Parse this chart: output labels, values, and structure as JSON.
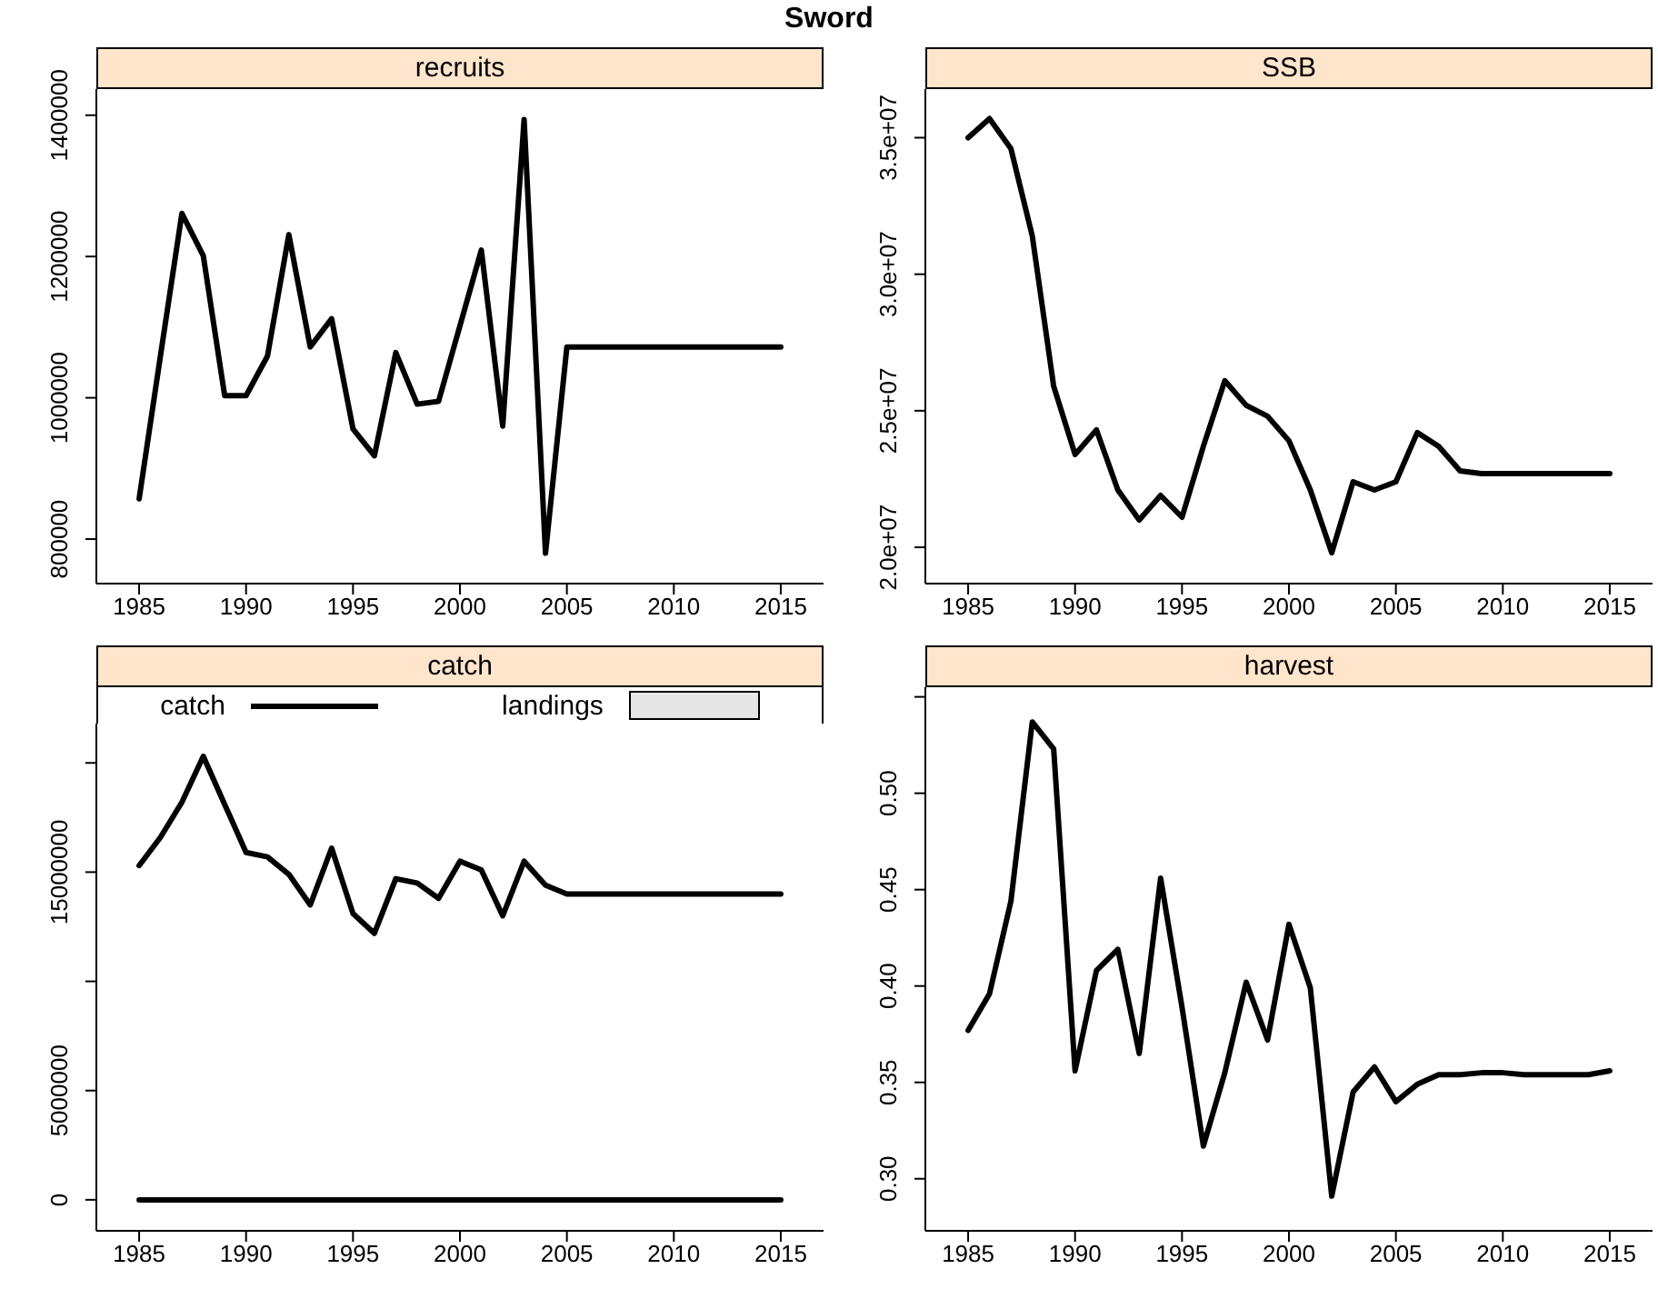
{
  "chart_data": [
    {
      "type": "line",
      "title": "recruits",
      "annotations": [
        "Sword"
      ],
      "x": [
        1985,
        1986,
        1987,
        1988,
        1989,
        1990,
        1991,
        1992,
        1993,
        1994,
        1995,
        1996,
        1997,
        1998,
        1999,
        2000,
        2001,
        2002,
        2003,
        2004,
        2005,
        2006,
        2007,
        2008,
        2009,
        2010,
        2011,
        2012,
        2013,
        2014,
        2015
      ],
      "series": [
        {
          "color": "#000000",
          "values": [
            857000,
            1060000,
            1261000,
            1201000,
            1003000,
            1003000,
            1059000,
            1231000,
            1072000,
            1112000,
            956000,
            918000,
            1064000,
            991000,
            995000,
            1102000,
            1209000,
            960000,
            1394000,
            780000,
            1072000,
            1072000,
            1072000,
            1072000,
            1072000,
            1072000,
            1072000,
            1072000,
            1072000,
            1072000,
            1072000
          ]
        }
      ],
      "xlim": [
        1983,
        2017
      ],
      "xticks": [
        1985,
        1990,
        1995,
        2000,
        2005,
        2010,
        2015
      ],
      "ylim": [
        737000,
        1437000
      ],
      "yticks": [
        800000,
        1000000,
        1200000,
        1400000
      ]
    },
    {
      "type": "line",
      "title": "SSB",
      "x": [
        1985,
        1986,
        1987,
        1988,
        1989,
        1990,
        1991,
        1992,
        1993,
        1994,
        1995,
        1996,
        1997,
        1998,
        1999,
        2000,
        2001,
        2002,
        2003,
        2004,
        2005,
        2006,
        2007,
        2008,
        2009,
        2010,
        2011,
        2012,
        2013,
        2014,
        2015
      ],
      "series": [
        {
          "color": "#000000",
          "values": [
            35000000,
            35700000,
            34600000,
            31400000,
            25900000,
            23400000,
            24300000,
            22100000,
            21000000,
            21900000,
            21100000,
            23700000,
            26100000,
            25200000,
            24800000,
            23900000,
            22100000,
            19800000,
            22400000,
            22100000,
            22400000,
            24200000,
            23700000,
            22800000,
            22700000,
            22700000,
            22700000,
            22700000,
            22700000,
            22700000,
            22700000
          ]
        }
      ],
      "xlim": [
        1983,
        2017
      ],
      "xticks": [
        1985,
        1990,
        1995,
        2000,
        2005,
        2010,
        2015
      ],
      "ylim": [
        18670000,
        36780000
      ],
      "yticks": [
        {
          "value": 20000000,
          "label": "2.0e+07"
        },
        {
          "value": 25000000,
          "label": "2.5e+07"
        },
        {
          "value": 30000000,
          "label": "3.0e+07"
        },
        {
          "value": 35000000,
          "label": "3.5e+07"
        }
      ]
    },
    {
      "type": "line",
      "title": "catch",
      "legend": "top",
      "annotations": [
        "landings"
      ],
      "x": [
        1985,
        1986,
        1987,
        1988,
        1989,
        1990,
        1991,
        1992,
        1993,
        1994,
        1995,
        1996,
        1997,
        1998,
        1999,
        2000,
        2001,
        2002,
        2003,
        2004,
        2005,
        2006,
        2007,
        2008,
        2009,
        2010,
        2011,
        2012,
        2013,
        2014,
        2015
      ],
      "series": [
        {
          "name": "catch",
          "color": "#000000",
          "values": [
            15300000,
            16600000,
            18200000,
            20300000,
            18100000,
            15900000,
            15700000,
            14900000,
            13500000,
            16100000,
            13100000,
            12200000,
            14700000,
            14500000,
            13800000,
            15500000,
            15100000,
            13000000,
            15500000,
            14400000,
            14000000,
            14000000,
            14000000,
            14000000,
            14000000,
            14000000,
            14000000,
            14000000,
            14000000,
            14000000,
            14000000
          ]
        },
        {
          "color": "#000000",
          "values": [
            0,
            0,
            0,
            0,
            0,
            0,
            0,
            0,
            0,
            0,
            0,
            0,
            0,
            0,
            0,
            0,
            0,
            0,
            0,
            0,
            0,
            0,
            0,
            0,
            0,
            0,
            0,
            0,
            0,
            0,
            0
          ]
        }
      ],
      "xlim": [
        1983,
        2017
      ],
      "xticks": [
        1985,
        1990,
        1995,
        2000,
        2005,
        2010,
        2015
      ],
      "ylim": [
        -1420000,
        21800000
      ],
      "yticks": [
        0,
        5000000,
        {
          "value": 10000000,
          "label": null
        },
        15000000,
        {
          "value": 20000000,
          "label": null
        }
      ]
    },
    {
      "type": "line",
      "title": "harvest",
      "x": [
        1985,
        1986,
        1987,
        1988,
        1989,
        1990,
        1991,
        1992,
        1993,
        1994,
        1995,
        1996,
        1997,
        1998,
        1999,
        2000,
        2001,
        2002,
        2003,
        2004,
        2005,
        2006,
        2007,
        2008,
        2009,
        2010,
        2011,
        2012,
        2013,
        2014,
        2015
      ],
      "series": [
        {
          "color": "#000000",
          "values": [
            0.377,
            0.396,
            0.444,
            0.537,
            0.523,
            0.356,
            0.408,
            0.419,
            0.365,
            0.456,
            0.389,
            0.317,
            0.355,
            0.402,
            0.372,
            0.432,
            0.399,
            0.291,
            0.345,
            0.358,
            0.34,
            0.349,
            0.354,
            0.354,
            0.355,
            0.355,
            0.354,
            0.354,
            0.354,
            0.354,
            0.356
          ]
        }
      ],
      "xlim": [
        1983,
        2017
      ],
      "xticks": [
        1985,
        1990,
        1995,
        2000,
        2005,
        2010,
        2015
      ],
      "ylim": [
        0.273,
        0.555
      ],
      "yticks": [
        {
          "value": 0.3,
          "label": "0.30"
        },
        {
          "value": 0.35,
          "label": "0.35"
        },
        {
          "value": 0.4,
          "label": "0.40"
        },
        {
          "value": 0.45,
          "label": "0.45"
        },
        {
          "value": 0.5,
          "label": "0.50"
        },
        {
          "value": 0.55,
          "label": null
        }
      ]
    }
  ]
}
